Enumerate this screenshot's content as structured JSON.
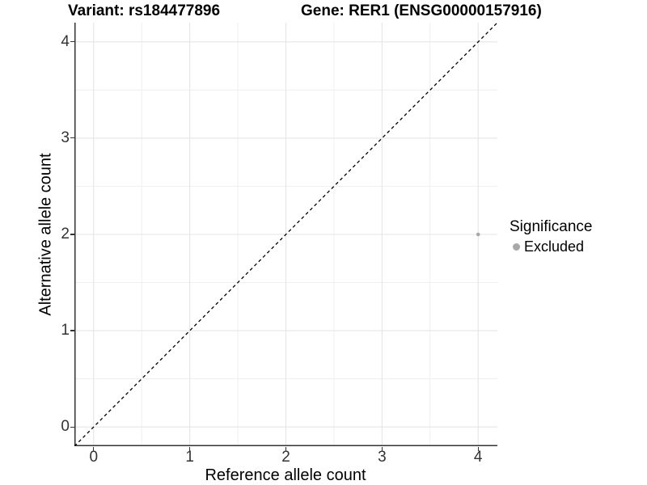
{
  "header": {
    "variant_title": "Variant: rs184477896",
    "gene_title": "Gene: RER1 (ENSG00000157916)"
  },
  "legend": {
    "title": "Significance",
    "items": [
      {
        "label": "Excluded",
        "color": "#a8a8a8"
      }
    ]
  },
  "chart_data": {
    "type": "scatter",
    "title": "Variant: rs184477896 | Gene: RER1 (ENSG00000157916)",
    "xlabel": "Reference allele count",
    "ylabel": "Alternative allele count",
    "xlim": [
      -0.2,
      4.2
    ],
    "ylim": [
      -0.2,
      4.2
    ],
    "x_ticks": [
      0,
      1,
      2,
      3,
      4
    ],
    "y_ticks": [
      0,
      1,
      2,
      3,
      4
    ],
    "minor_tick_step": 0.5,
    "grid": "on",
    "legend_position": "right",
    "series": [
      {
        "name": "Excluded",
        "color": "#a8a8a8",
        "points": [
          {
            "x": 4,
            "y": 2
          }
        ]
      }
    ],
    "reference_line": {
      "shape": "identity-diagonal",
      "style": "dashed",
      "color": "#000000",
      "from": {
        "x": -0.2,
        "y": -0.2
      },
      "to": {
        "x": 4.2,
        "y": 4.2
      }
    }
  },
  "style": {
    "grid_major_color": "#e5e5e5",
    "grid_minor_color": "#eeeeee",
    "axis_line_color": "#333333",
    "tick_label_color": "#333333",
    "point_color": "#a8a8a8",
    "background": "#ffffff"
  }
}
